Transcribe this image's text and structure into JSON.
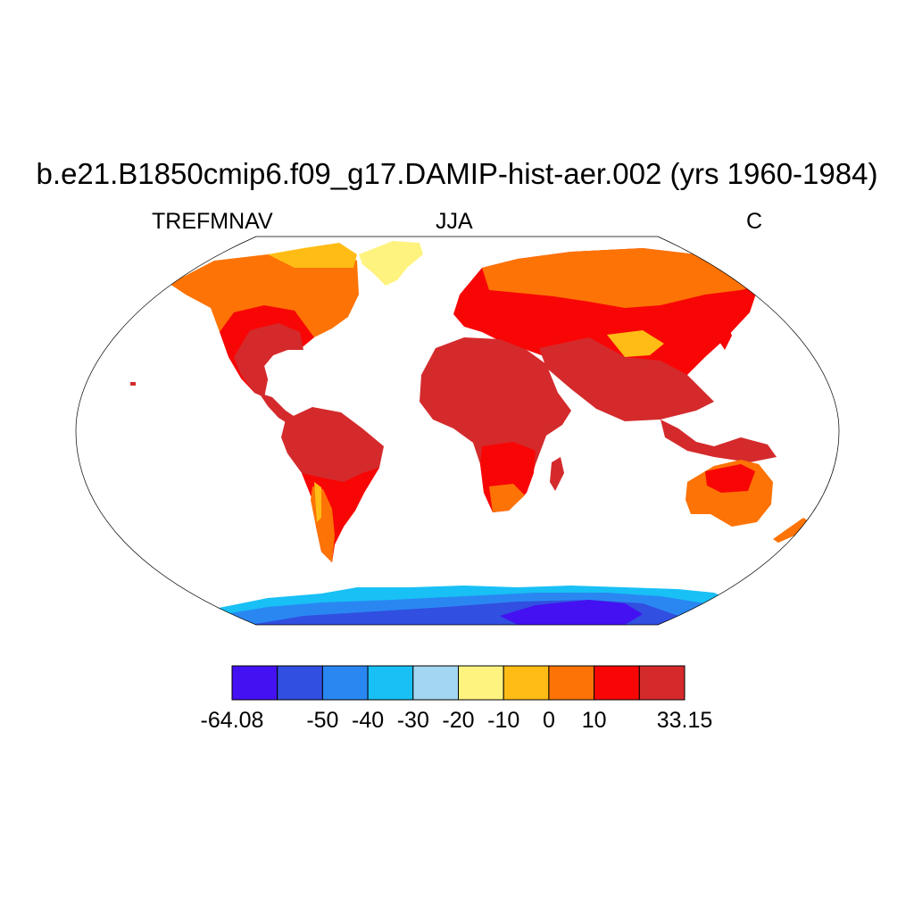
{
  "title": "b.e21.B1850cmip6.f09_g17.DAMIP-hist-aer.002 (yrs 1960-1984)",
  "left_label": "TREFMNAV",
  "center_label": "JJA",
  "right_label": "C",
  "colorbar": {
    "colors": [
      "#4411f2",
      "#314fe0",
      "#2a87f2",
      "#18c0f5",
      "#a2d6f1",
      "#fff380",
      "#ffbc15",
      "#fd7305",
      "#f80606",
      "#d42a2c"
    ],
    "labels": [
      {
        "text": "-64.08",
        "index": 0
      },
      {
        "text": "-50",
        "index": 2
      },
      {
        "text": "-40",
        "index": 3
      },
      {
        "text": "-30",
        "index": 4
      },
      {
        "text": "-20",
        "index": 5
      },
      {
        "text": "-10",
        "index": 6
      },
      {
        "text": "0",
        "index": 7
      },
      {
        "text": "10",
        "index": 8
      },
      {
        "text": "33.15",
        "index": 10
      }
    ]
  }
}
